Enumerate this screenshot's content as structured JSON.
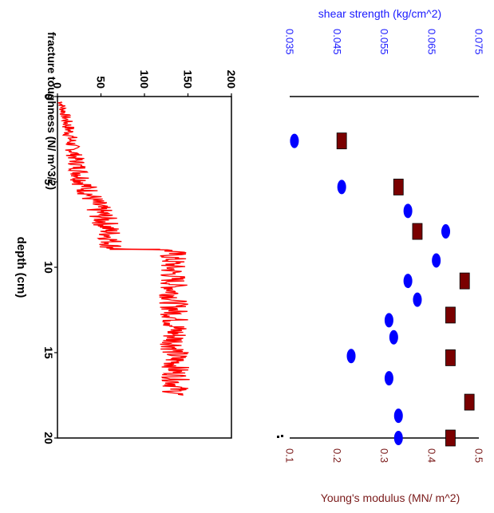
{
  "colors": {
    "background": "#ffffff",
    "axis": "#000000",
    "toughness_line": "#ff0000",
    "shear_marker": "#0000ff",
    "modulus_marker": "#7a0000",
    "shear_axis_text": "#1a1aff",
    "modulus_axis_text": "#7a1a1a"
  },
  "chart_data": [
    {
      "type": "line",
      "orientation": "rotated 90° clockwise (depth runs downward on the page)",
      "xlabel": "depth (cm)",
      "ylabel": "fracture toughness (N/ m^3/2)",
      "xlim": [
        0,
        20
      ],
      "ylim": [
        0,
        200
      ],
      "x_ticks": [
        "0",
        "5",
        "10",
        "15",
        "20"
      ],
      "y_ticks": [
        "0",
        "50",
        "100",
        "150",
        "200"
      ],
      "grid": false,
      "series": [
        {
          "color": "#ff0000",
          "envelope": [
            {
              "x": 0.3,
              "low": 0,
              "high": 8
            },
            {
              "x": 1.0,
              "low": 2,
              "high": 14
            },
            {
              "x": 2.0,
              "low": 5,
              "high": 22
            },
            {
              "x": 3.0,
              "low": 8,
              "high": 26
            },
            {
              "x": 4.0,
              "low": 12,
              "high": 34
            },
            {
              "x": 5.0,
              "low": 15,
              "high": 44
            },
            {
              "x": 6.0,
              "low": 25,
              "high": 55
            },
            {
              "x": 7.0,
              "low": 35,
              "high": 68
            },
            {
              "x": 8.0,
              "low": 45,
              "high": 75
            },
            {
              "x": 8.9,
              "low": 48,
              "high": 78
            },
            {
              "x": 9.0,
              "low": 115,
              "high": 150
            },
            {
              "x": 10.0,
              "low": 115,
              "high": 148
            },
            {
              "x": 11.0,
              "low": 117,
              "high": 150
            },
            {
              "x": 12.0,
              "low": 117,
              "high": 150
            },
            {
              "x": 13.0,
              "low": 118,
              "high": 152
            },
            {
              "x": 14.0,
              "low": 118,
              "high": 152
            },
            {
              "x": 15.0,
              "low": 118,
              "high": 152
            },
            {
              "x": 16.0,
              "low": 120,
              "high": 152
            },
            {
              "x": 17.0,
              "low": 120,
              "high": 152
            },
            {
              "x": 17.5,
              "low": 120,
              "high": 152
            }
          ]
        }
      ]
    },
    {
      "type": "scatter",
      "orientation": "rotated 90° clockwise (depth runs downward on the page)",
      "xlim": [
        0,
        20
      ],
      "x_axis_shared_with": "depth (cm)",
      "top_axis": {
        "label": "shear strength (kg/cm^2)",
        "range": [
          0.035,
          0.075
        ],
        "ticks": [
          "0.035",
          "0.045",
          "0.055",
          "0.065",
          "0.075"
        ]
      },
      "bottom_axis": {
        "label": "Young's modulus (MN/ m^2)",
        "range": [
          0.1,
          0.5
        ],
        "ticks": [
          "0.1",
          "0.2",
          "0.3",
          "0.4",
          "0.5"
        ]
      },
      "grid": false,
      "series": [
        {
          "marker": "blue diamond",
          "axis": "top",
          "points": [
            {
              "x": 2.6,
              "y": 0.036
            },
            {
              "x": 5.3,
              "y": 0.046
            },
            {
              "x": 6.7,
              "y": 0.06
            },
            {
              "x": 7.9,
              "y": 0.068
            },
            {
              "x": 9.6,
              "y": 0.066
            },
            {
              "x": 10.8,
              "y": 0.06
            },
            {
              "x": 11.9,
              "y": 0.062
            },
            {
              "x": 13.1,
              "y": 0.056
            },
            {
              "x": 14.1,
              "y": 0.057
            },
            {
              "x": 15.2,
              "y": 0.048
            },
            {
              "x": 16.5,
              "y": 0.056
            },
            {
              "x": 18.7,
              "y": 0.058
            },
            {
              "x": 20.0,
              "y": 0.058
            }
          ]
        },
        {
          "marker": "dark red square",
          "axis": "bottom",
          "points": [
            {
              "x": 2.6,
              "y": 0.21
            },
            {
              "x": 5.3,
              "y": 0.33
            },
            {
              "x": 7.9,
              "y": 0.37
            },
            {
              "x": 10.8,
              "y": 0.47
            },
            {
              "x": 12.8,
              "y": 0.44
            },
            {
              "x": 15.3,
              "y": 0.44
            },
            {
              "x": 17.9,
              "y": 0.48
            },
            {
              "x": 20.0,
              "y": 0.44
            }
          ]
        }
      ]
    }
  ]
}
